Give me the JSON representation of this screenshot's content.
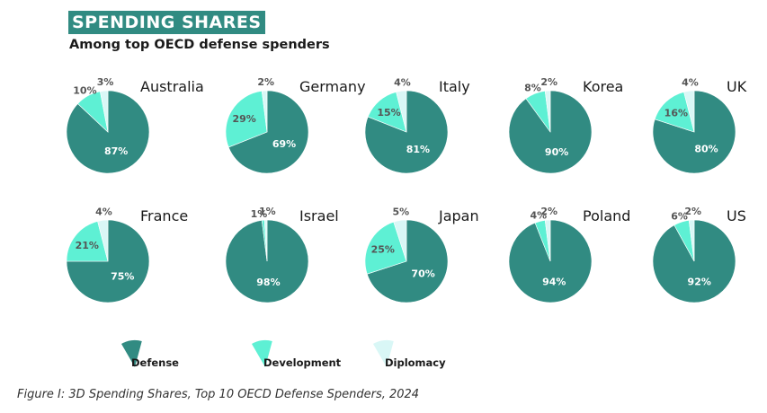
{
  "title": "SPENDING SHARES",
  "subtitle": "Among top OECD defense spenders",
  "caption": "Figure I: 3D Spending Shares, Top 10 OECD Defense Spenders, 2024",
  "colors": {
    "Defense": "#318b82",
    "Development": "#5ef0d4",
    "Diplomacy": "#d9f7f6"
  },
  "chart_data": {
    "type": "pie",
    "categories": [
      "Defense",
      "Development",
      "Diplomacy"
    ],
    "pies": [
      {
        "name": "Australia",
        "values": [
          87,
          10,
          3
        ],
        "labels": [
          "87%",
          "10%",
          "3%"
        ]
      },
      {
        "name": "Germany",
        "values": [
          69,
          29,
          2
        ],
        "labels": [
          "69%",
          "29%",
          "2%"
        ]
      },
      {
        "name": "Italy",
        "values": [
          81,
          15,
          4
        ],
        "labels": [
          "81%",
          "15%",
          "4%"
        ]
      },
      {
        "name": "Korea",
        "values": [
          90,
          8,
          2
        ],
        "labels": [
          "90%",
          "8%",
          "2%"
        ]
      },
      {
        "name": "UK",
        "values": [
          80,
          16,
          4
        ],
        "labels": [
          "80%",
          "16%",
          "4%"
        ]
      },
      {
        "name": "France",
        "values": [
          75,
          21,
          4
        ],
        "labels": [
          "75%",
          "21%",
          "4%"
        ]
      },
      {
        "name": "Israel",
        "values": [
          98,
          1,
          1
        ],
        "labels": [
          "98%",
          "1%",
          "1%"
        ]
      },
      {
        "name": "Japan",
        "values": [
          70,
          25,
          5
        ],
        "labels": [
          "70%",
          "25%",
          "5%"
        ]
      },
      {
        "name": "Poland",
        "values": [
          94,
          4,
          2
        ],
        "labels": [
          "94%",
          "4%",
          "2%"
        ]
      },
      {
        "name": "US",
        "values": [
          92,
          6,
          2
        ],
        "labels": [
          "92%",
          "6%",
          "2%"
        ]
      }
    ],
    "legend": [
      "Defense",
      "Development",
      "Diplomacy"
    ],
    "legend_position": "bottom"
  }
}
